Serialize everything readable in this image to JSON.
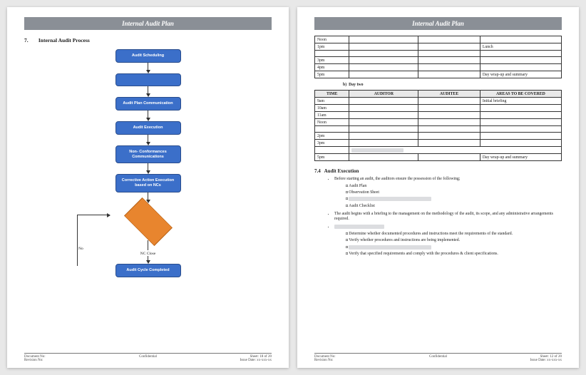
{
  "banner_title": "Internal Audit Plan",
  "left_page": {
    "section_number": "7.",
    "section_title": "Internal Audit Process",
    "flow_nodes": [
      "Audit Scheduling",
      "",
      "Audit Plan Communication",
      "Audit Execution",
      "Non- Conformances Communications",
      "Corrective Action Execution based on NCs",
      "Audit Cycle Completed"
    ],
    "diamond_label": "",
    "no_label": "No",
    "nc_close_label": "NC Close",
    "node_fill": "#3b6fc9",
    "node_border": "#2a4d8c",
    "diamond_fill": "#e8852e",
    "diamond_border": "#b8641a",
    "footer": {
      "doc_no": "Document No:",
      "rev_no": "Revision No:",
      "center": "Confidential",
      "sheet": "Sheet: 18 of 20",
      "issue": "Issue Date: xx-xxx-xx"
    }
  },
  "right_page": {
    "table1_rows": [
      {
        "time": "Noon",
        "auditor": "",
        "auditee": "",
        "areas": ""
      },
      {
        "time": "1pm",
        "auditor": "",
        "auditee": "",
        "areas": "Lunch"
      },
      {
        "time": "3pm",
        "auditor": "",
        "auditee": "",
        "areas": ""
      },
      {
        "time": "4pm",
        "auditor": "",
        "auditee": "",
        "areas": ""
      },
      {
        "time": "5pm",
        "auditor": "",
        "auditee": "",
        "areas": "Day wrap-up and summary"
      }
    ],
    "caption2": "b)",
    "caption2_text": "Day two",
    "table2_headers": [
      "TIME",
      "AUDITOR",
      "AUDITEE",
      "AREAS TO BE COVERED"
    ],
    "table2_col_widths": [
      "14%",
      "28%",
      "25%",
      "33%"
    ],
    "table2_rows": [
      {
        "time": "9am",
        "auditor": "",
        "auditee": "",
        "areas": "Initial briefing"
      },
      {
        "time": "10am",
        "auditor": "",
        "auditee": "",
        "areas": ""
      },
      {
        "time": "11am",
        "auditor": "",
        "auditee": "",
        "areas": ""
      },
      {
        "time": "Noon",
        "auditor": "",
        "auditee": "",
        "areas": ""
      },
      {
        "time": "2pm",
        "auditor": "",
        "auditee": "",
        "areas": ""
      },
      {
        "time": "3pm",
        "auditor": "",
        "auditee": "",
        "areas": ""
      },
      {
        "time": "5pm",
        "auditor": "",
        "auditee": "",
        "areas": "Day wrap-up and summary"
      }
    ],
    "subsection_num": "7.4",
    "subsection_title": "Audit Execution",
    "bullets": [
      {
        "text": "Before starting an audit, the auditors ensure the possession of the following;",
        "sub": [
          "Audit Plan",
          "Observation Sheet",
          "",
          "Audit Checklist"
        ]
      },
      {
        "text": "The audit begins with a briefing to the management on the methodology of the audit, its scope, and any administrative arrangements required."
      },
      {
        "text": "",
        "sub": [
          "Determine whether documented procedures and instructions meet the requirements of the standard.",
          "Verify whether procedures and instructions are being implemented.",
          "",
          "Verify that specified requirements and comply with the procedures & client specifications."
        ]
      }
    ],
    "footer": {
      "doc_no": "Document No:",
      "rev_no": "Revision No:",
      "center": "Confidential",
      "sheet": "Sheet: 12 of 20",
      "issue": "Issue Date: xx-xxx-xx"
    }
  }
}
